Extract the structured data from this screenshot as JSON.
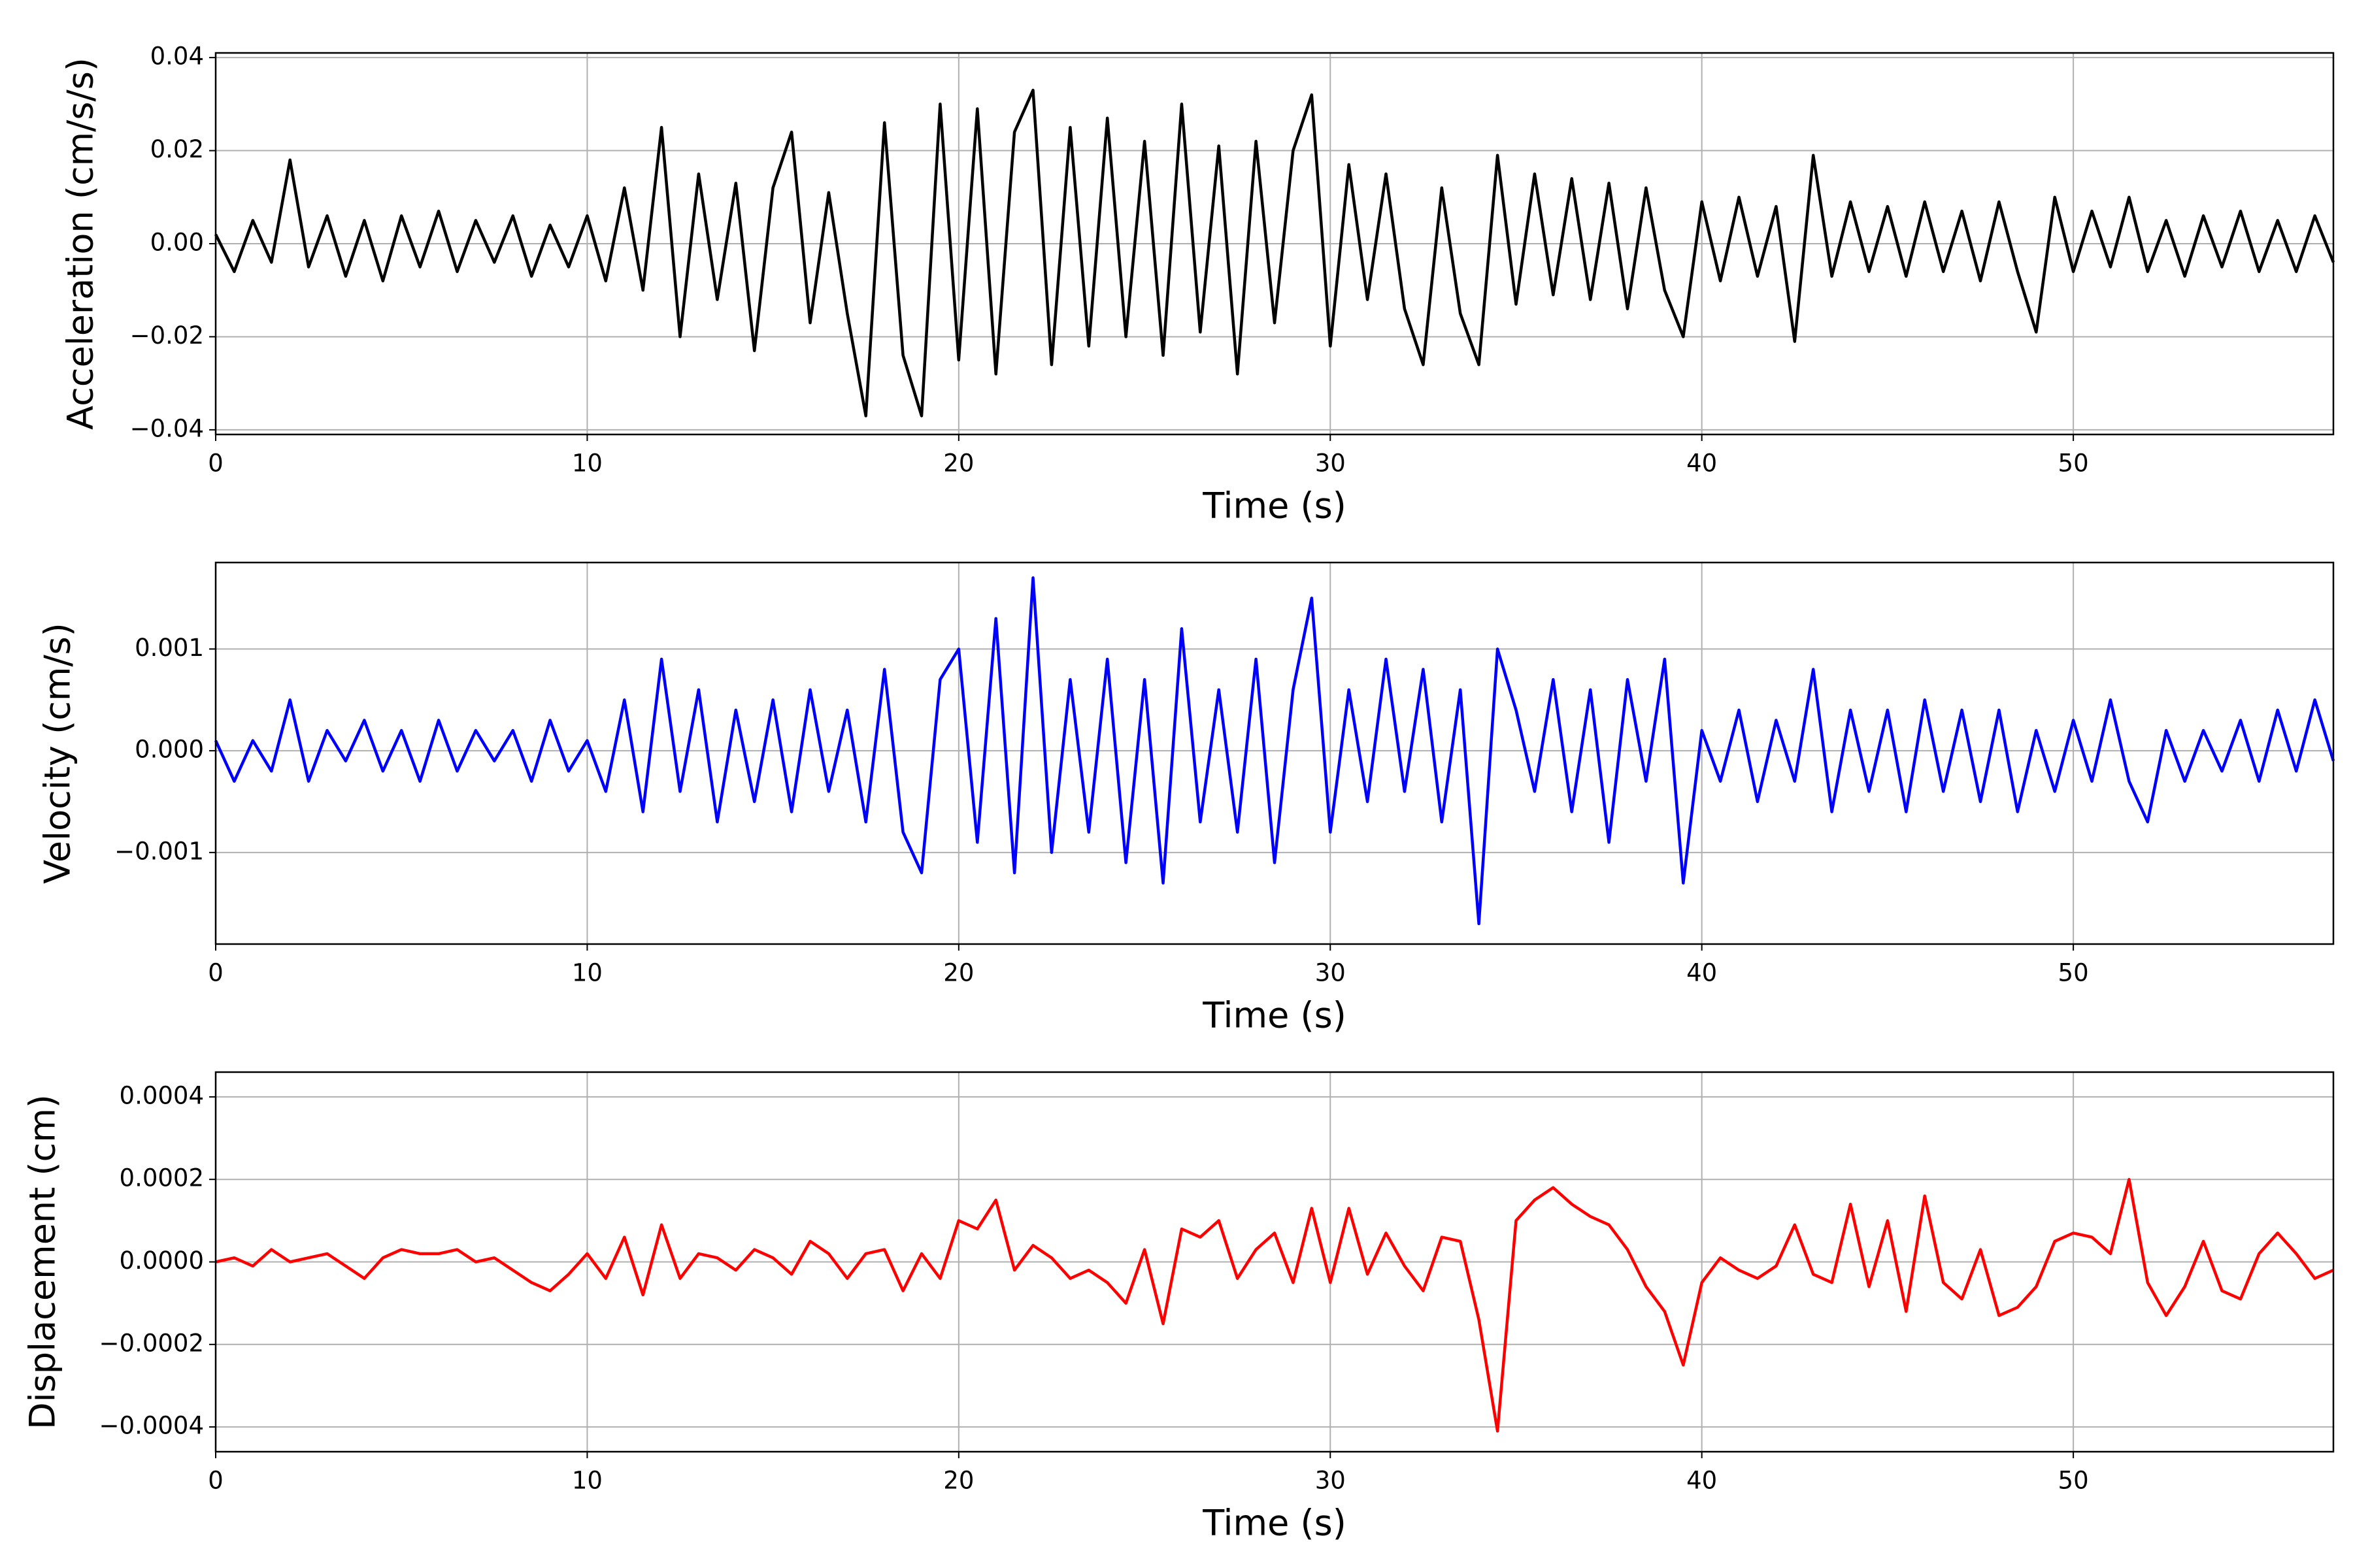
{
  "chart_data": [
    {
      "type": "line",
      "xlabel": "Time (s)",
      "ylabel": "Acceleration (cm/s/s)",
      "color": "#000000",
      "grid": true,
      "xlim": [
        0,
        57
      ],
      "xticks": [
        0,
        10,
        20,
        30,
        40,
        50
      ],
      "ylim": [
        -0.041,
        0.041
      ],
      "yticks": [
        {
          "value": -0.04,
          "label": "−0.04"
        },
        {
          "value": -0.02,
          "label": "−0.02"
        },
        {
          "value": 0,
          "label": "0.00"
        },
        0.02,
        0.04
      ],
      "x": [
        0,
        0.5,
        1,
        1.5,
        2,
        2.5,
        3,
        3.5,
        4,
        4.5,
        5,
        5.5,
        6,
        6.5,
        7,
        7.5,
        8,
        8.5,
        9,
        9.5,
        10,
        10.5,
        11,
        11.5,
        12,
        12.5,
        13,
        13.5,
        14,
        14.5,
        15,
        15.5,
        16,
        16.5,
        17,
        17.5,
        18,
        18.5,
        19,
        19.5,
        20,
        20.5,
        21,
        21.5,
        22,
        22.5,
        23,
        23.5,
        24,
        24.5,
        25,
        25.5,
        26,
        26.5,
        27,
        27.5,
        28,
        28.5,
        29,
        29.5,
        30,
        30.5,
        31,
        31.5,
        32,
        32.5,
        33,
        33.5,
        34,
        34.5,
        35,
        35.5,
        36,
        36.5,
        37,
        37.5,
        38,
        38.5,
        39,
        39.5,
        40,
        40.5,
        41,
        41.5,
        42,
        42.5,
        43,
        43.5,
        44,
        44.5,
        45,
        45.5,
        46,
        46.5,
        47,
        47.5,
        48,
        48.5,
        49,
        49.5,
        50,
        50.5,
        51,
        51.5,
        52,
        52.5,
        53,
        53.5,
        54,
        54.5,
        55,
        55.5,
        56,
        56.5,
        57
      ],
      "values": [
        0.002,
        -0.006,
        0.005,
        -0.004,
        0.018,
        -0.005,
        0.006,
        -0.007,
        0.005,
        -0.008,
        0.006,
        -0.005,
        0.007,
        -0.006,
        0.005,
        -0.004,
        0.006,
        -0.007,
        0.004,
        -0.005,
        0.006,
        -0.008,
        0.012,
        -0.01,
        0.025,
        -0.02,
        0.015,
        -0.012,
        0.013,
        -0.023,
        0.012,
        0.024,
        -0.017,
        0.011,
        -0.015,
        -0.037,
        0.026,
        -0.024,
        -0.037,
        0.03,
        -0.025,
        0.029,
        -0.028,
        0.024,
        0.033,
        -0.026,
        0.025,
        -0.022,
        0.027,
        -0.02,
        0.022,
        -0.024,
        0.03,
        -0.019,
        0.021,
        -0.028,
        0.022,
        -0.017,
        0.02,
        0.032,
        -0.022,
        0.017,
        -0.012,
        0.015,
        -0.014,
        -0.026,
        0.012,
        -0.015,
        -0.026,
        0.019,
        -0.013,
        0.015,
        -0.011,
        0.014,
        -0.012,
        0.013,
        -0.014,
        0.012,
        -0.01,
        -0.02,
        0.009,
        -0.008,
        0.01,
        -0.007,
        0.008,
        -0.021,
        0.019,
        -0.007,
        0.009,
        -0.006,
        0.008,
        -0.007,
        0.009,
        -0.006,
        0.007,
        -0.008,
        0.009,
        -0.006,
        -0.019,
        0.01,
        -0.006,
        0.007,
        -0.005,
        0.01,
        -0.006,
        0.005,
        -0.007,
        0.006,
        -0.005,
        0.007,
        -0.006,
        0.005,
        -0.006,
        0.006,
        -0.004
      ]
    },
    {
      "type": "line",
      "xlabel": "Time (s)",
      "ylabel": "Velocity (cm/s)",
      "color": "#0000ff",
      "grid": true,
      "xlim": [
        0,
        57
      ],
      "xticks": [
        0,
        10,
        20,
        30,
        40,
        50
      ],
      "ylim": [
        -0.0019,
        0.00185
      ],
      "yticks": [
        {
          "value": -0.001,
          "label": "−0.001"
        },
        {
          "value": 0,
          "label": "0.000"
        },
        0.001
      ],
      "x": [
        0,
        0.5,
        1,
        1.5,
        2,
        2.5,
        3,
        3.5,
        4,
        4.5,
        5,
        5.5,
        6,
        6.5,
        7,
        7.5,
        8,
        8.5,
        9,
        9.5,
        10,
        10.5,
        11,
        11.5,
        12,
        12.5,
        13,
        13.5,
        14,
        14.5,
        15,
        15.5,
        16,
        16.5,
        17,
        17.5,
        18,
        18.5,
        19,
        19.5,
        20,
        20.5,
        21,
        21.5,
        22,
        22.5,
        23,
        23.5,
        24,
        24.5,
        25,
        25.5,
        26,
        26.5,
        27,
        27.5,
        28,
        28.5,
        29,
        29.5,
        30,
        30.5,
        31,
        31.5,
        32,
        32.5,
        33,
        33.5,
        34,
        34.5,
        35,
        35.5,
        36,
        36.5,
        37,
        37.5,
        38,
        38.5,
        39,
        39.5,
        40,
        40.5,
        41,
        41.5,
        42,
        42.5,
        43,
        43.5,
        44,
        44.5,
        45,
        45.5,
        46,
        46.5,
        47,
        47.5,
        48,
        48.5,
        49,
        49.5,
        50,
        50.5,
        51,
        51.5,
        52,
        52.5,
        53,
        53.5,
        54,
        54.5,
        55,
        55.5,
        56,
        56.5,
        57
      ],
      "values": [
        0.0001,
        -0.0003,
        0.0001,
        -0.0002,
        0.0005,
        -0.0003,
        0.0002,
        -0.0001,
        0.0003,
        -0.0002,
        0.0002,
        -0.0003,
        0.0003,
        -0.0002,
        0.0002,
        -0.0001,
        0.0002,
        -0.0003,
        0.0003,
        -0.0002,
        0.0001,
        -0.0004,
        0.0005,
        -0.0006,
        0.0009,
        -0.0004,
        0.0006,
        -0.0007,
        0.0004,
        -0.0005,
        0.0005,
        -0.0006,
        0.0006,
        -0.0004,
        0.0004,
        -0.0007,
        0.0008,
        -0.0008,
        -0.0012,
        0.0007,
        0.001,
        -0.0009,
        0.0013,
        -0.0012,
        0.0017,
        -0.001,
        0.0007,
        -0.0008,
        0.0009,
        -0.0011,
        0.0007,
        -0.0013,
        0.0012,
        -0.0007,
        0.0006,
        -0.0008,
        0.0009,
        -0.0011,
        0.0006,
        0.0015,
        -0.0008,
        0.0006,
        -0.0005,
        0.0009,
        -0.0004,
        0.0008,
        -0.0007,
        0.0006,
        -0.0017,
        0.001,
        0.0004,
        -0.0004,
        0.0007,
        -0.0006,
        0.0006,
        -0.0009,
        0.0007,
        -0.0003,
        0.0009,
        -0.0013,
        0.0002,
        -0.0003,
        0.0004,
        -0.0005,
        0.0003,
        -0.0003,
        0.0008,
        -0.0006,
        0.0004,
        -0.0004,
        0.0004,
        -0.0006,
        0.0005,
        -0.0004,
        0.0004,
        -0.0005,
        0.0004,
        -0.0006,
        0.0002,
        -0.0004,
        0.0003,
        -0.0003,
        0.0005,
        -0.0003,
        -0.0007,
        0.0002,
        -0.0003,
        0.0002,
        -0.0002,
        0.0003,
        -0.0003,
        0.0004,
        -0.0002,
        0.0005,
        -0.0001
      ]
    },
    {
      "type": "line",
      "xlabel": "Time (s)",
      "ylabel": "Displacement (cm)",
      "color": "#ff0000",
      "grid": true,
      "xlim": [
        0,
        57
      ],
      "xticks": [
        0,
        10,
        20,
        30,
        40,
        50
      ],
      "ylim": [
        -0.00046,
        0.00046
      ],
      "yticks": [
        {
          "value": -0.0004,
          "label": "−0.0004"
        },
        {
          "value": -0.0002,
          "label": "−0.0002"
        },
        {
          "value": 0,
          "label": "0.0000"
        },
        0.0002,
        0.0004
      ],
      "x": [
        0,
        0.5,
        1,
        1.5,
        2,
        2.5,
        3,
        3.5,
        4,
        4.5,
        5,
        5.5,
        6,
        6.5,
        7,
        7.5,
        8,
        8.5,
        9,
        9.5,
        10,
        10.5,
        11,
        11.5,
        12,
        12.5,
        13,
        13.5,
        14,
        14.5,
        15,
        15.5,
        16,
        16.5,
        17,
        17.5,
        18,
        18.5,
        19,
        19.5,
        20,
        20.5,
        21,
        21.5,
        22,
        22.5,
        23,
        23.5,
        24,
        24.5,
        25,
        25.5,
        26,
        26.5,
        27,
        27.5,
        28,
        28.5,
        29,
        29.5,
        30,
        30.5,
        31,
        31.5,
        32,
        32.5,
        33,
        33.5,
        34,
        34.5,
        35,
        35.5,
        36,
        36.5,
        37,
        37.5,
        38,
        38.5,
        39,
        39.5,
        40,
        40.5,
        41,
        41.5,
        42,
        42.5,
        43,
        43.5,
        44,
        44.5,
        45,
        45.5,
        46,
        46.5,
        47,
        47.5,
        48,
        48.5,
        49,
        49.5,
        50,
        50.5,
        51,
        51.5,
        52,
        52.5,
        53,
        53.5,
        54,
        54.5,
        55,
        55.5,
        56,
        56.5,
        57
      ],
      "values": [
        0,
        1e-05,
        -1e-05,
        3e-05,
        0,
        1e-05,
        2e-05,
        -1e-05,
        -4e-05,
        1e-05,
        3e-05,
        2e-05,
        2e-05,
        3e-05,
        0,
        1e-05,
        -2e-05,
        -5e-05,
        -7e-05,
        -3e-05,
        2e-05,
        -4e-05,
        6e-05,
        -8e-05,
        9e-05,
        -4e-05,
        2e-05,
        1e-05,
        -2e-05,
        3e-05,
        1e-05,
        -3e-05,
        5e-05,
        2e-05,
        -4e-05,
        2e-05,
        3e-05,
        -7e-05,
        2e-05,
        -4e-05,
        0.0001,
        8e-05,
        0.00015,
        -2e-05,
        4e-05,
        1e-05,
        -4e-05,
        -2e-05,
        -5e-05,
        -0.0001,
        3e-05,
        -0.00015,
        8e-05,
        6e-05,
        0.0001,
        -4e-05,
        3e-05,
        7e-05,
        -5e-05,
        0.00013,
        -5e-05,
        0.00013,
        -3e-05,
        7e-05,
        -1e-05,
        -7e-05,
        6e-05,
        5e-05,
        -0.00014,
        -0.00041,
        0.0001,
        0.00015,
        0.00018,
        0.00014,
        0.00011,
        9e-05,
        3e-05,
        -6e-05,
        -0.00012,
        -0.00025,
        -5e-05,
        1e-05,
        -2e-05,
        -4e-05,
        -1e-05,
        9e-05,
        -3e-05,
        -5e-05,
        0.00014,
        -6e-05,
        0.0001,
        -0.00012,
        0.00016,
        -5e-05,
        -9e-05,
        3e-05,
        -0.00013,
        -0.00011,
        -6e-05,
        5e-05,
        7e-05,
        6e-05,
        2e-05,
        0.0002,
        -5e-05,
        -0.00013,
        -6e-05,
        5e-05,
        -7e-05,
        -9e-05,
        2e-05,
        7e-05,
        2e-05,
        -4e-05,
        -2e-05
      ]
    }
  ]
}
